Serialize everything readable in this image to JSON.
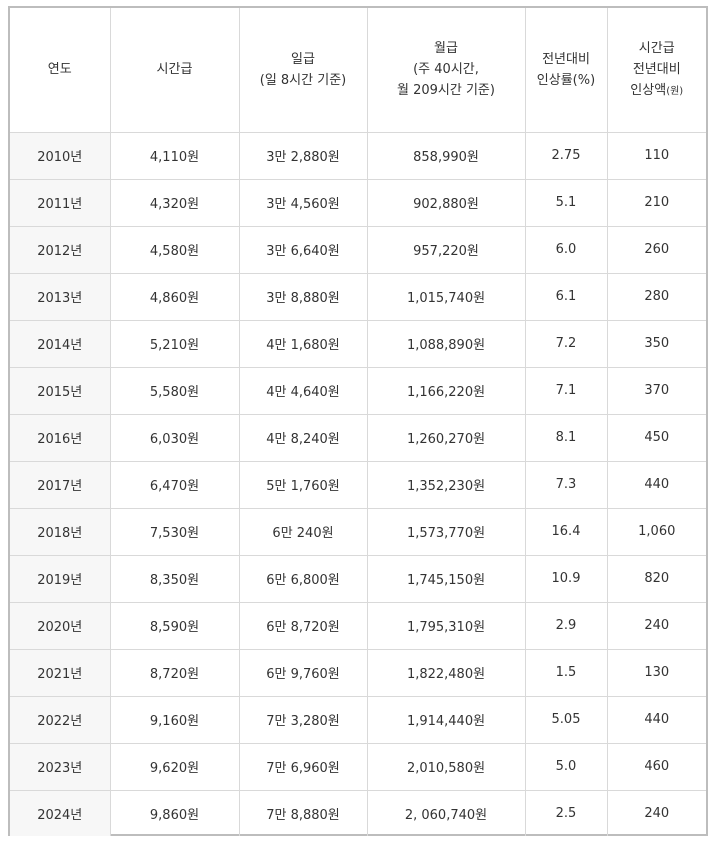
{
  "headers": {
    "year": "연도",
    "hourly": "시간급",
    "daily_line1": "일급",
    "daily_line2": "(일 8시간 기준)",
    "monthly_line1": "월급",
    "monthly_line2": "(주 40시간,",
    "monthly_line3": "월 209시간 기준)",
    "rate_line1": "전년대비",
    "rate_line2": "인상률(%)",
    "amount_line1": "시간급",
    "amount_line2": "전년대비",
    "amount_line3": "인상액",
    "amount_unit": "(원)"
  },
  "rows": [
    {
      "year": "2010년",
      "hourly": "4,110원",
      "daily": "3만 2,880원",
      "monthly": "858,990원",
      "rate": "2.75",
      "amount": "110"
    },
    {
      "year": "2011년",
      "hourly": "4,320원",
      "daily": "3만 4,560원",
      "monthly": "902,880원",
      "rate": "5.1",
      "amount": "210"
    },
    {
      "year": "2012년",
      "hourly": "4,580원",
      "daily": "3만 6,640원",
      "monthly": "957,220원",
      "rate": "6.0",
      "amount": "260"
    },
    {
      "year": "2013년",
      "hourly": "4,860원",
      "daily": "3만 8,880원",
      "monthly": "1,015,740원",
      "rate": "6.1",
      "amount": "280"
    },
    {
      "year": "2014년",
      "hourly": "5,210원",
      "daily": "4만 1,680원",
      "monthly": "1,088,890원",
      "rate": "7.2",
      "amount": "350"
    },
    {
      "year": "2015년",
      "hourly": "5,580원",
      "daily": "4만 4,640원",
      "monthly": "1,166,220원",
      "rate": "7.1",
      "amount": "370"
    },
    {
      "year": "2016년",
      "hourly": "6,030원",
      "daily": "4만 8,240원",
      "monthly": "1,260,270원",
      "rate": "8.1",
      "amount": "450"
    },
    {
      "year": "2017년",
      "hourly": "6,470원",
      "daily": "5만 1,760원",
      "monthly": "1,352,230원",
      "rate": "7.3",
      "amount": "440"
    },
    {
      "year": "2018년",
      "hourly": "7,530원",
      "daily": "6만 240원",
      "monthly": "1,573,770원",
      "rate": "16.4",
      "amount": "1,060"
    },
    {
      "year": "2019년",
      "hourly": "8,350원",
      "daily": "6만 6,800원",
      "monthly": "1,745,150원",
      "rate": "10.9",
      "amount": "820"
    },
    {
      "year": "2020년",
      "hourly": "8,590원",
      "daily": "6만 8,720원",
      "monthly": "1,795,310원",
      "rate": "2.9",
      "amount": "240"
    },
    {
      "year": "2021년",
      "hourly": "8,720원",
      "daily": "6만 9,760원",
      "monthly": "1,822,480원",
      "rate": "1.5",
      "amount": "130"
    },
    {
      "year": "2022년",
      "hourly": "9,160원",
      "daily": "7만 3,280원",
      "monthly": "1,914,440원",
      "rate": "5.05",
      "amount": "440"
    },
    {
      "year": "2023년",
      "hourly": "9,620원",
      "daily": "7만 6,960원",
      "monthly": "2,010,580원",
      "rate": "5.0",
      "amount": "460"
    },
    {
      "year": "2024년",
      "hourly": "9,860원",
      "daily": "7만 8,880원",
      "monthly": "2, 060,740원",
      "rate": "2.5",
      "amount": "240"
    }
  ]
}
